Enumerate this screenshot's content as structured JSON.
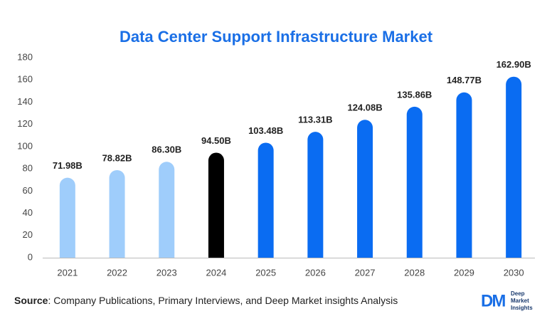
{
  "chart_data": {
    "type": "bar",
    "title": "Data Center Support Infrastructure Market",
    "categories": [
      "2021",
      "2022",
      "2023",
      "2024",
      "2025",
      "2026",
      "2027",
      "2028",
      "2029",
      "2030"
    ],
    "values": [
      71.98,
      78.82,
      86.3,
      94.5,
      103.48,
      113.31,
      124.08,
      135.86,
      148.77,
      162.9
    ],
    "value_labels": [
      "71.98B",
      "78.82B",
      "86.30B",
      "94.50B",
      "103.48B",
      "113.31B",
      "124.08B",
      "135.86B",
      "148.77B",
      "162.90B"
    ],
    "colors": [
      "#9fcdfb",
      "#9fcdfb",
      "#9fcdfb",
      "#000000",
      "#0a6cf2",
      "#0a6cf2",
      "#0a6cf2",
      "#0a6cf2",
      "#0a6cf2",
      "#0a6cf2"
    ],
    "ylim": [
      0,
      180
    ],
    "yticks": [
      0,
      20,
      40,
      60,
      80,
      100,
      120,
      140,
      160,
      180
    ],
    "grid": false
  },
  "footer": {
    "source_label": "Source",
    "source_text": ": Company Publications, Primary Interviews, and Deep Market insights Analysis",
    "logo_mark": "DM",
    "logo_lines": [
      "Deep",
      "Market",
      "Insights"
    ]
  }
}
